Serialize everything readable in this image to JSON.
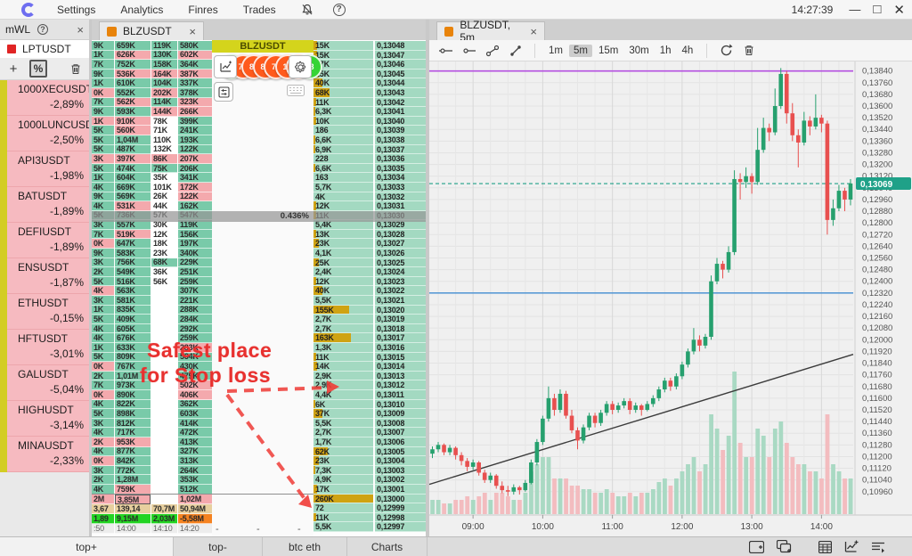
{
  "window": {
    "clock": "14:27:39"
  },
  "menu": {
    "items": [
      "Settings",
      "Analytics",
      "Finres",
      "Trades"
    ]
  },
  "watchlist_panel": {
    "title": "mWL",
    "pinned_symbol": "LPTUSDT",
    "items": [
      {
        "symbol": "1000XECUSDT",
        "change": "-2,89%"
      },
      {
        "symbol": "1000LUNCUSDT",
        "change": "-2,50%"
      },
      {
        "symbol": "API3USDT",
        "change": "-1,98%"
      },
      {
        "symbol": "BATUSDT",
        "change": "-1,89%"
      },
      {
        "symbol": "DEFIUSDT",
        "change": "-1,89%"
      },
      {
        "symbol": "ENSUSDT",
        "change": "-1,87%"
      },
      {
        "symbol": "ETHUSDT",
        "change": "-0,15%"
      },
      {
        "symbol": "HFTUSDT",
        "change": "-3,01%"
      },
      {
        "symbol": "GALUSDT",
        "change": "-5,04%"
      },
      {
        "symbol": "HIGHUSDT",
        "change": "-3,14%"
      },
      {
        "symbol": "MINAUSDT",
        "change": "-2,33%"
      }
    ]
  },
  "dom_panel": {
    "tab": "BLZUSDT",
    "header": "BLZUSDT",
    "mid_change": "0.436%",
    "bubbles": [
      "1",
      "78",
      "83",
      "83",
      "72",
      "18",
      "39",
      "18"
    ],
    "columns": {
      "c0": [
        "9K|g",
        "1K|g",
        "7K|g",
        "9K|g",
        "1K|g",
        "0K|p",
        "7K|g",
        "9K|g",
        "1K|p",
        "5K|g",
        "5K|g",
        "5K|g",
        "3K|p",
        "5K|g",
        "1K|g",
        "4K|g",
        "9K|g",
        "4K|g",
        "5K|g",
        "3K|g",
        "7K|g",
        "0K|p",
        "9K|g",
        "3K|g",
        "2K|g",
        "5K|g",
        "4K|p",
        "3K|g",
        "1K|g",
        "5K|g",
        "4K|g",
        "4K|g",
        "1K|g",
        "5K|g",
        "0K|p",
        "2K|g",
        "7K|g",
        "0K|p",
        "4K|g",
        "5K|g",
        "3K|g",
        "4K|g",
        "2K|p",
        "4K|g",
        "0K|p",
        "3K|g",
        "2K|g",
        "4K|g"
      ],
      "c1": [
        "659K|g",
        "626K|p",
        "752K|g",
        "536K|p",
        "610K|g",
        "552K|g",
        "562K|p",
        "593K|g",
        "910K|p",
        "560K|p",
        "1,04M|g",
        "487K|g",
        "397K|p",
        "474K|g",
        "604K|g",
        "669K|g",
        "569K|g",
        "531K|p",
        "736K|g",
        "557K|g",
        "519K|p",
        "647K|g",
        "583K|g",
        "756K|g",
        "549K|g",
        "516K|g",
        "563K|g",
        "581K|g",
        "835K|g",
        "409K|g",
        "605K|g",
        "676K|g",
        "633K|g",
        "809K|g",
        "767K|g",
        "1,01M|g",
        "973K|g",
        "890K|g",
        "822K|g",
        "898K|g",
        "812K|g",
        "717K|g",
        "953K|p",
        "877K|g",
        "842K|g",
        "772K|g",
        "1,28M|g",
        "759K|p"
      ],
      "c2": [
        "119K|g",
        "130K|g",
        "158K|g",
        "164K|p",
        "104K|g",
        "202K|p",
        "114K|g",
        "144K|p",
        "78K|x",
        "71K|x",
        "110K|x",
        "132K|x",
        "86K|p",
        "75K|g",
        "35K|x",
        "101K|x",
        "26K|x",
        "44K|x",
        "57K|x",
        "30K|x",
        "12K|x",
        "18K|x",
        "23K|x",
        "68K|g",
        "36K|x",
        "56K|x",
        "|x",
        "|x",
        "|x",
        "|x",
        "|x",
        "|x",
        "|x",
        "|x",
        "|x",
        "|x",
        "|x",
        "|x",
        "|x",
        "|x",
        "|x",
        "|x",
        "|x",
        "|x",
        "|x",
        "|x",
        "|x",
        "|x"
      ],
      "c3": [
        "580K|g",
        "602K|p",
        "364K|g",
        "387K|p",
        "337K|g",
        "378K|g",
        "323K|p",
        "266K|p",
        "399K|g",
        "241K|g",
        "193K|g",
        "122K|g",
        "207K|p",
        "206K|g",
        "341K|g",
        "172K|p",
        "122K|p",
        "162K|g",
        "547K|g",
        "119K|g",
        "156K|g",
        "197K|g",
        "340K|g",
        "229K|g",
        "251K|g",
        "259K|g",
        "307K|g",
        "221K|g",
        "288K|g",
        "284K|g",
        "292K|g",
        "259K|g",
        "283K|p",
        "564K|g",
        "430K|g",
        "479K|g",
        "502K|p",
        "406K|p",
        "362K|g",
        "603K|g",
        "414K|g",
        "472K|g",
        "413K|g",
        "327K|g",
        "313K|g",
        "264K|g",
        "353K|g",
        "512K|g"
      ]
    },
    "summary_rows": [
      {
        "style": "pink",
        "cells": [
          "2M",
          "3,85M",
          "",
          "1,02M"
        ]
      },
      {
        "style": "tan",
        "cells": [
          "3,67",
          "139,14",
          "70,7M",
          "50,94M"
        ]
      },
      {
        "style": "delta",
        "cells": [
          "1,89",
          "9,15M",
          "2,03M",
          "-5,58M"
        ]
      },
      {
        "style": "times",
        "cells": [
          ":50",
          "14:00",
          "14:10",
          "14:20"
        ]
      }
    ],
    "ladder": {
      "price_prefix": "0,",
      "price_from": 13048,
      "rows": 52,
      "highlight_index": 18,
      "sizes": [
        "15K",
        "15K",
        "17K",
        "25K",
        "40K",
        "68K",
        "11K",
        "6,3K",
        "10K",
        "186",
        "6,6K",
        "6,9K",
        "228",
        "6,6K",
        "163",
        "5,7K",
        "4K",
        "12K",
        "11K",
        "5,4K",
        "13K",
        "23K",
        "4,1K",
        "25K",
        "2,4K",
        "12K",
        "40K",
        "5,5K",
        "155K",
        "2,7K",
        "2,7K",
        "163K",
        "1,3K",
        "11K",
        "14K",
        "2,9K",
        "2,9K",
        "4,4K",
        "6K",
        "37K",
        "5,5K",
        "2,7K",
        "1,7K",
        "62K",
        "23K",
        "7,3K",
        "4,9K",
        "17K",
        "260K",
        "72",
        "11K",
        "5,5K"
      ]
    },
    "filter": {
      "label": "F",
      "options": [
        "136",
        "2",
        "3",
        "4",
        "5"
      ],
      "selected": "136",
      "dashes": [
        "-",
        "-",
        "-"
      ]
    },
    "annotation": {
      "line1": "Safest place",
      "line2": "for Stop loss"
    }
  },
  "chart_panel": {
    "tab": "BLZUSDT, 5m",
    "timeframes": [
      "1m",
      "5m",
      "15m",
      "30m",
      "1h",
      "4h"
    ],
    "active_timeframe": "5m",
    "price_badge": "0,13069",
    "chart_data": {
      "type": "candlestick",
      "symbol": "BLZUSDT",
      "interval": "5m",
      "start_time": "08:25",
      "x_ticks": [
        {
          "label": "09:00",
          "index": 7
        },
        {
          "label": "10:00",
          "index": 19
        },
        {
          "label": "11:00",
          "index": 31
        },
        {
          "label": "12:00",
          "index": 43
        },
        {
          "label": "13:00",
          "index": 55
        },
        {
          "label": "14:00",
          "index": 67
        }
      ],
      "y_axis": {
        "min": 0.1096,
        "max": 0.1384,
        "step": 0.0008,
        "decimal_comma": true
      },
      "current_price": 0.13069,
      "colors": {
        "up": "#26a06e",
        "down": "#e8504f",
        "vol_up": "#a9d9c3",
        "vol_down": "#f3bcbf",
        "current": "#1fa188",
        "level_purple": "#b44fe0",
        "level_blue": "#5b9bd5",
        "trend": "#3c3c3c"
      },
      "levels": [
        {
          "type": "hline",
          "price": 0.1384,
          "color_key": "level_purple"
        },
        {
          "type": "hline",
          "price": 0.1232,
          "color_key": "level_blue"
        },
        {
          "type": "trendline",
          "p1": 0.1101,
          "p2": 0.119,
          "color_key": "trend"
        }
      ],
      "volume_unit": "relative",
      "candles": [
        [
          0.1122,
          0.1127,
          0.1119,
          0.1125,
          2
        ],
        [
          0.1125,
          0.113,
          0.1123,
          0.1128,
          2
        ],
        [
          0.1128,
          0.1129,
          0.1121,
          0.1123,
          1.5
        ],
        [
          0.1123,
          0.1128,
          0.1121,
          0.1126,
          1.5
        ],
        [
          0.1126,
          0.1127,
          0.1118,
          0.1121,
          2
        ],
        [
          0.1121,
          0.1123,
          0.1114,
          0.1117,
          2
        ],
        [
          0.1117,
          0.1119,
          0.111,
          0.1113,
          2.5
        ],
        [
          0.1113,
          0.1118,
          0.1111,
          0.1116,
          2
        ],
        [
          0.1116,
          0.1117,
          0.1107,
          0.1109,
          2.5
        ],
        [
          0.1109,
          0.1111,
          0.1102,
          0.1104,
          3
        ],
        [
          0.1104,
          0.1109,
          0.1102,
          0.1107,
          2
        ],
        [
          0.1107,
          0.1108,
          0.1098,
          0.11,
          3
        ],
        [
          0.11,
          0.1103,
          0.1095,
          0.1097,
          3
        ],
        [
          0.1097,
          0.11,
          0.1093,
          0.1096,
          2.5
        ],
        [
          0.1096,
          0.1101,
          0.1094,
          0.1099,
          2
        ],
        [
          0.1099,
          0.11,
          0.1094,
          0.1097,
          2
        ],
        [
          0.1097,
          0.1104,
          0.1096,
          0.1102,
          3
        ],
        [
          0.1102,
          0.1118,
          0.1101,
          0.1116,
          6
        ],
        [
          0.1116,
          0.1132,
          0.1114,
          0.113,
          7
        ],
        [
          0.113,
          0.1148,
          0.1128,
          0.1146,
          8
        ],
        [
          0.1146,
          0.1168,
          0.1144,
          0.116,
          8
        ],
        [
          0.116,
          0.1163,
          0.1148,
          0.1152,
          5
        ],
        [
          0.1152,
          0.1166,
          0.115,
          0.1163,
          5
        ],
        [
          0.1163,
          0.1165,
          0.1146,
          0.1148,
          5
        ],
        [
          0.1148,
          0.1152,
          0.1136,
          0.1138,
          4
        ],
        [
          0.1138,
          0.114,
          0.1125,
          0.1131,
          4
        ],
        [
          0.1131,
          0.1142,
          0.1129,
          0.114,
          3.5
        ],
        [
          0.114,
          0.115,
          0.1138,
          0.1148,
          3.5
        ],
        [
          0.1148,
          0.115,
          0.114,
          0.1143,
          3
        ],
        [
          0.1143,
          0.1152,
          0.1141,
          0.115,
          3
        ],
        [
          0.115,
          0.1158,
          0.1148,
          0.1156,
          3.5
        ],
        [
          0.1156,
          0.1158,
          0.1149,
          0.1152,
          3
        ],
        [
          0.1152,
          0.1157,
          0.115,
          0.1155,
          2.5
        ],
        [
          0.1155,
          0.116,
          0.1153,
          0.1158,
          2.5
        ],
        [
          0.1158,
          0.116,
          0.1149,
          0.1152,
          3
        ],
        [
          0.1152,
          0.1157,
          0.115,
          0.1155,
          2.5
        ],
        [
          0.1155,
          0.1156,
          0.1148,
          0.1152,
          3
        ],
        [
          0.1152,
          0.1158,
          0.1151,
          0.1156,
          3
        ],
        [
          0.1156,
          0.1162,
          0.1154,
          0.116,
          3.5
        ],
        [
          0.116,
          0.1168,
          0.1158,
          0.1166,
          4.5
        ],
        [
          0.1166,
          0.1174,
          0.1164,
          0.1172,
          5
        ],
        [
          0.1172,
          0.1174,
          0.1165,
          0.1168,
          4
        ],
        [
          0.1168,
          0.1177,
          0.1166,
          0.1175,
          5
        ],
        [
          0.1175,
          0.1185,
          0.1173,
          0.1183,
          6
        ],
        [
          0.1183,
          0.1194,
          0.1181,
          0.1192,
          7
        ],
        [
          0.1192,
          0.1208,
          0.119,
          0.12,
          8
        ],
        [
          0.12,
          0.1203,
          0.1192,
          0.1196,
          6
        ],
        [
          0.1196,
          0.1204,
          0.1194,
          0.1202,
          7
        ],
        [
          0.1202,
          0.1244,
          0.12,
          0.124,
          14
        ],
        [
          0.124,
          0.1256,
          0.1238,
          0.1252,
          12
        ],
        [
          0.1252,
          0.1254,
          0.1242,
          0.1248,
          9
        ],
        [
          0.1248,
          0.1264,
          0.1246,
          0.126,
          11
        ],
        [
          0.126,
          0.1316,
          0.1258,
          0.131,
          20
        ],
        [
          0.131,
          0.1314,
          0.1296,
          0.1308,
          10
        ],
        [
          0.1308,
          0.1318,
          0.1304,
          0.1312,
          8
        ],
        [
          0.1312,
          0.1314,
          0.13,
          0.1308,
          8
        ],
        [
          0.1308,
          0.1345,
          0.1306,
          0.133,
          12
        ],
        [
          0.133,
          0.1352,
          0.1328,
          0.1345,
          11
        ],
        [
          0.1345,
          0.1348,
          0.1336,
          0.1342,
          8
        ],
        [
          0.1342,
          0.1372,
          0.134,
          0.136,
          12
        ],
        [
          0.136,
          0.1386,
          0.1358,
          0.1382,
          13
        ],
        [
          0.1382,
          0.1384,
          0.1348,
          0.1355,
          10
        ],
        [
          0.1355,
          0.1362,
          0.1336,
          0.134,
          8
        ],
        [
          0.134,
          0.1344,
          0.1318,
          0.1335,
          7
        ],
        [
          0.1335,
          0.1356,
          0.1333,
          0.135,
          7
        ],
        [
          0.135,
          0.1353,
          0.134,
          0.1346,
          6
        ],
        [
          0.1346,
          0.1368,
          0.1344,
          0.1352,
          6
        ],
        [
          0.1352,
          0.1354,
          0.1342,
          0.1348,
          5
        ],
        [
          0.1348,
          0.135,
          0.1272,
          0.1282,
          14
        ],
        [
          0.1282,
          0.1296,
          0.1278,
          0.129,
          7
        ],
        [
          0.129,
          0.1306,
          0.1288,
          0.1302,
          6
        ],
        [
          0.1302,
          0.1304,
          0.1288,
          0.1296,
          5
        ],
        [
          0.1296,
          0.131,
          0.1292,
          0.1307,
          5
        ]
      ]
    }
  },
  "bottom_bar": {
    "tabs": [
      {
        "label": "top+",
        "active": true
      },
      {
        "label": "top-",
        "active": false
      },
      {
        "label": "btc eth",
        "active": false
      },
      {
        "label": "Charts",
        "active": false
      }
    ],
    "icons": [
      "add-panel",
      "add-window",
      "data-table",
      "add-chart",
      "order-list"
    ]
  }
}
